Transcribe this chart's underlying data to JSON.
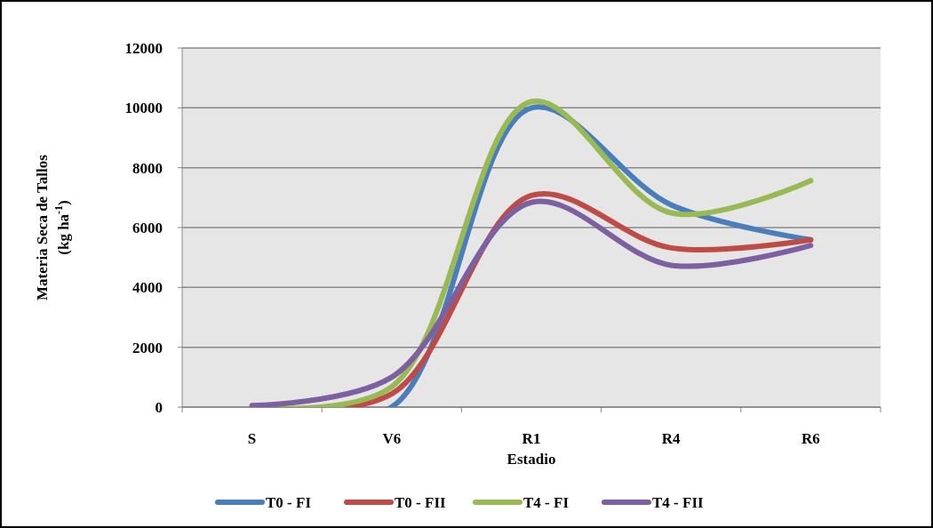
{
  "chart_data": {
    "type": "line",
    "xlabel": "Estadio",
    "ylabel": "Materia Seca de Tallos (kg ha$^{-1}$)",
    "categories": [
      "S",
      "V6",
      "R1",
      "R4",
      "R6"
    ],
    "series": [
      {
        "name": "T0 - FI",
        "color": "#4a7ebb",
        "values": [
          0,
          0,
          10000,
          6760,
          5590
        ]
      },
      {
        "name": "T0 - FII",
        "color": "#be4b48",
        "values": [
          0,
          440,
          7070,
          5320,
          5590
        ]
      },
      {
        "name": "T4 - FI",
        "color": "#98b954",
        "values": [
          0,
          680,
          10210,
          6490,
          7570
        ]
      },
      {
        "name": "T4 - FII",
        "color": "#7d60a0",
        "values": [
          50,
          1000,
          6840,
          4740,
          5400
        ]
      }
    ],
    "ylim": [
      0,
      12000
    ],
    "yticks": [
      0,
      2000,
      4000,
      6000,
      8000,
      10000,
      12000
    ],
    "grid": "y",
    "legend": "bottom"
  }
}
